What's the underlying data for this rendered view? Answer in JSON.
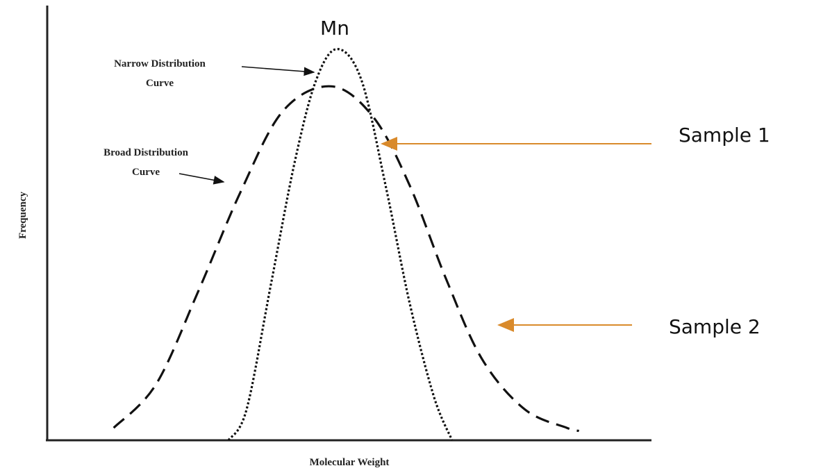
{
  "chart_data": {
    "type": "line",
    "title": "",
    "xlabel": "Molecular Weight",
    "ylabel": "Frequency",
    "grid": false,
    "peak_label": "Mn",
    "series": [
      {
        "name": "Narrow Distribution Curve",
        "line_style": "dotted",
        "color": "#111111",
        "points": [
          [
            300,
            0
          ],
          [
            330,
            50
          ],
          [
            370,
            250
          ],
          [
            410,
            450
          ],
          [
            445,
            580
          ],
          [
            480,
            630
          ],
          [
            520,
            580
          ],
          [
            560,
            410
          ],
          [
            600,
            220
          ],
          [
            640,
            70
          ],
          [
            670,
            0
          ]
        ]
      },
      {
        "name": "Broad Distribution Curve",
        "line_style": "dashed",
        "color": "#111111",
        "points": [
          [
            110,
            20
          ],
          [
            180,
            90
          ],
          [
            250,
            240
          ],
          [
            320,
            400
          ],
          [
            390,
            530
          ],
          [
            470,
            570
          ],
          [
            540,
            520
          ],
          [
            600,
            410
          ],
          [
            660,
            260
          ],
          [
            720,
            130
          ],
          [
            790,
            50
          ],
          [
            860,
            20
          ],
          [
            880,
            15
          ]
        ]
      }
    ],
    "annotations": [
      {
        "text": "Narrow Distribution Curve",
        "lines": [
          "Narrow Distribution",
          "Curve"
        ]
      },
      {
        "text": "Broad Distribution Curve",
        "lines": [
          "Broad Distribution",
          "Curve"
        ]
      }
    ],
    "callouts": [
      {
        "text": "Sample 1",
        "color": "#d98a2b"
      },
      {
        "text": "Sample 2",
        "color": "#d98a2b"
      }
    ]
  }
}
